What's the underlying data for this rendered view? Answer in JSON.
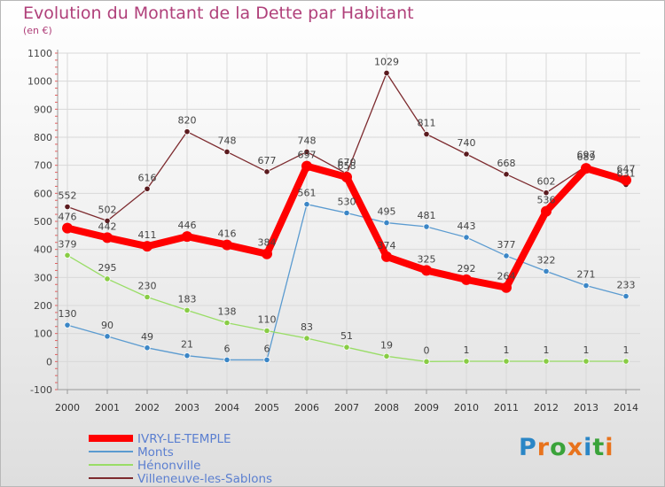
{
  "title": "Evolution du Montant de la Dette par Habitant",
  "subtitle": "(en €)",
  "logo": [
    "P",
    "r",
    "o",
    "x",
    "i",
    "t",
    "i"
  ],
  "colors": {
    "title": "#b0407a",
    "accent_logo": [
      "#2a86c6",
      "#e8731d",
      "#3aa33a",
      "#e8731d",
      "#2a86c6",
      "#3aa33a",
      "#e8731d"
    ]
  },
  "chart_data": {
    "type": "line",
    "categories": [
      "2000",
      "2001",
      "2002",
      "2003",
      "2004",
      "2005",
      "2006",
      "2007",
      "2008",
      "2009",
      "2010",
      "2011",
      "2012",
      "2013",
      "2014"
    ],
    "ylim": [
      -100,
      1100
    ],
    "yticks": [
      "-100",
      "0",
      "100",
      "200",
      "300",
      "400",
      "500",
      "600",
      "700",
      "800",
      "900",
      "1000",
      "1100"
    ],
    "grid": true,
    "legend_position": "bottom-left",
    "series": [
      {
        "name": "IVRY-LE-TEMPLE",
        "color": "#ff0000",
        "values": [
          476,
          442,
          411,
          446,
          416,
          384,
          697,
          658,
          374,
          325,
          292,
          264,
          536,
          689,
          647
        ],
        "labels": [
          "476",
          "442",
          "411",
          "446",
          "416",
          "384",
          "697",
          "658",
          "374",
          "325",
          "292",
          "264",
          "536",
          "689",
          "647"
        ]
      },
      {
        "name": "Monts",
        "color": "#5b9bd0",
        "values": [
          130,
          90,
          49,
          21,
          6,
          6,
          561,
          530,
          495,
          481,
          443,
          377,
          322,
          271,
          233
        ],
        "labels": [
          "130",
          "90",
          "49",
          "21",
          "6",
          "6",
          "561",
          "530",
          "495",
          "481",
          "443",
          "377",
          "322",
          "271",
          "233"
        ]
      },
      {
        "name": "Hénonville",
        "color": "#99dd66",
        "values": [
          379,
          295,
          230,
          183,
          138,
          110,
          83,
          51,
          19,
          0,
          1,
          1,
          1,
          1,
          1
        ],
        "labels": [
          "379",
          "295",
          "230",
          "183",
          "138",
          "110",
          "83",
          "51",
          "19",
          "0",
          "1",
          "1",
          "1",
          "1",
          "1"
        ]
      },
      {
        "name": "Villeneuve-les-Sablons",
        "color": "#7d2b2f",
        "values": [
          552,
          502,
          616,
          820,
          748,
          677,
          748,
          670,
          1029,
          811,
          740,
          668,
          602,
          697,
          631
        ],
        "labels": [
          "552",
          "502",
          "616",
          "820",
          "748",
          "677",
          "748",
          "670",
          "1029",
          "811",
          "740",
          "668",
          "602",
          "697",
          "631"
        ]
      }
    ]
  }
}
